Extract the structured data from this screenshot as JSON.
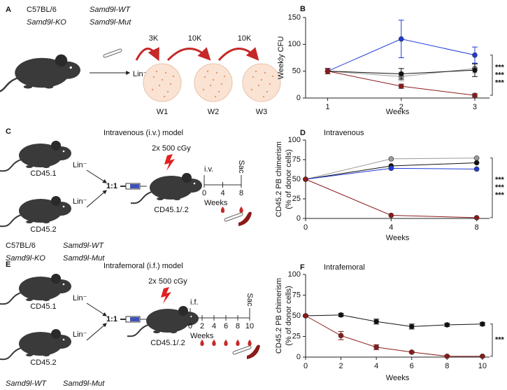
{
  "diagrams": {
    "A": {
      "label": "A",
      "arrows": [
        "3K",
        "10K",
        "10K"
      ],
      "input": "Lin⁻",
      "plates": [
        "W1",
        "W2",
        "W3"
      ]
    },
    "C": {
      "label": "C",
      "title": "Intravenous (i.v.) model",
      "donors": [
        "CD45.1",
        "CD45.2"
      ],
      "input": "Lin⁻",
      "ratio": "1:1",
      "dose": "2x 500 cGy",
      "recipient": "CD45.1/.2",
      "timeline": {
        "start": "i.v.",
        "end": "Sac",
        "ticks": [
          0,
          4,
          8
        ],
        "unit": "Weeks"
      }
    },
    "E": {
      "label": "E",
      "title": "Intrafemoral (i.f.) model",
      "donors": [
        "CD45.1",
        "CD45.2"
      ],
      "input": "Lin⁻",
      "ratio": "1:1",
      "dose": "2x 500 cGy",
      "recipient": "CD45.1/.2",
      "timeline": {
        "start": "i.f.",
        "end": "Sac",
        "ticks": [
          0,
          2,
          4,
          6,
          8,
          10
        ],
        "unit": "Weeks"
      }
    }
  },
  "chart_data": [
    {
      "type": "line",
      "panel_label": "B",
      "xlabel": "Weeks",
      "ylabel": [
        "Weekly CFU"
      ],
      "x": [
        1,
        2,
        3
      ],
      "xlim": [
        0.7,
        3.2
      ],
      "xticks": [
        1,
        2,
        3
      ],
      "ylim": [
        0,
        150
      ],
      "yticks": [
        0,
        50,
        100,
        150
      ],
      "series": [
        {
          "name": "C57BL/6",
          "color": "#9a9a9a",
          "values": [
            50,
            40,
            55
          ],
          "errors": [
            5,
            8,
            8
          ]
        },
        {
          "name": "Samd9l-WT",
          "color": "#111111",
          "values": [
            50,
            45,
            52
          ],
          "errors": [
            5,
            10,
            12
          ]
        },
        {
          "name": "Samd9l-KO",
          "color": "#1f3ad6",
          "values": [
            50,
            110,
            80
          ],
          "errors": [
            5,
            35,
            15
          ]
        },
        {
          "name": "Samd9l-Mut",
          "color": "#8b1a1a",
          "values": [
            50,
            22,
            5
          ],
          "errors": [
            5,
            4,
            3
          ]
        }
      ],
      "significance": [
        {
          "text": "***",
          "color": "#1f3ad6"
        },
        {
          "text": "***",
          "color": "#111111"
        },
        {
          "text": "***",
          "color": "#9a9a9a"
        }
      ]
    },
    {
      "type": "line",
      "panel_label": "D",
      "title": "Intravenous",
      "xlabel": "Weeks",
      "ylabel": [
        "CD45.2 PB chimerism",
        "(% of donor cells)"
      ],
      "x": [
        0,
        4,
        8
      ],
      "xlim": [
        0,
        8.6
      ],
      "xticks": [
        0,
        4,
        8
      ],
      "ylim": [
        0,
        100
      ],
      "yticks": [
        0,
        25,
        50,
        75,
        100
      ],
      "series": [
        {
          "name": "C57BL/6",
          "color": "#9a9a9a",
          "values": [
            50,
            76,
            77
          ]
        },
        {
          "name": "Samd9l-WT",
          "color": "#111111",
          "values": [
            50,
            67,
            71
          ]
        },
        {
          "name": "Samd9l-KO",
          "color": "#1f3ad6",
          "values": [
            50,
            64,
            63
          ]
        },
        {
          "name": "Samd9l-Mut",
          "color": "#8b1a1a",
          "values": [
            50,
            4,
            1
          ]
        }
      ],
      "significance": [
        {
          "text": "***",
          "color": "#1f3ad6"
        },
        {
          "text": "***",
          "color": "#111111"
        },
        {
          "text": "***",
          "color": "#9a9a9a"
        }
      ]
    },
    {
      "type": "line",
      "panel_label": "F",
      "title": "Intrafemoral",
      "xlabel": "Weeks",
      "ylabel": [
        "CD45.2 PB chimerism",
        "(% of donor cells)"
      ],
      "x": [
        0,
        2,
        4,
        6,
        8,
        10
      ],
      "xlim": [
        0,
        10.4
      ],
      "xticks": [
        0,
        2,
        4,
        6,
        8,
        10
      ],
      "ylim": [
        0,
        100
      ],
      "yticks": [
        0,
        25,
        50,
        75,
        100
      ],
      "series": [
        {
          "name": "Samd9l-WT",
          "color": "#111111",
          "values": [
            50,
            51,
            43,
            37,
            39,
            40
          ],
          "errors": [
            1,
            2,
            3,
            3,
            2,
            2
          ]
        },
        {
          "name": "Samd9l-Mut",
          "color": "#8b1a1a",
          "values": [
            50,
            26,
            12,
            6,
            1,
            1
          ],
          "errors": [
            1,
            5,
            3,
            1,
            1,
            1
          ]
        }
      ],
      "significance": [
        {
          "text": "***",
          "color": "#111111"
        }
      ]
    }
  ]
}
